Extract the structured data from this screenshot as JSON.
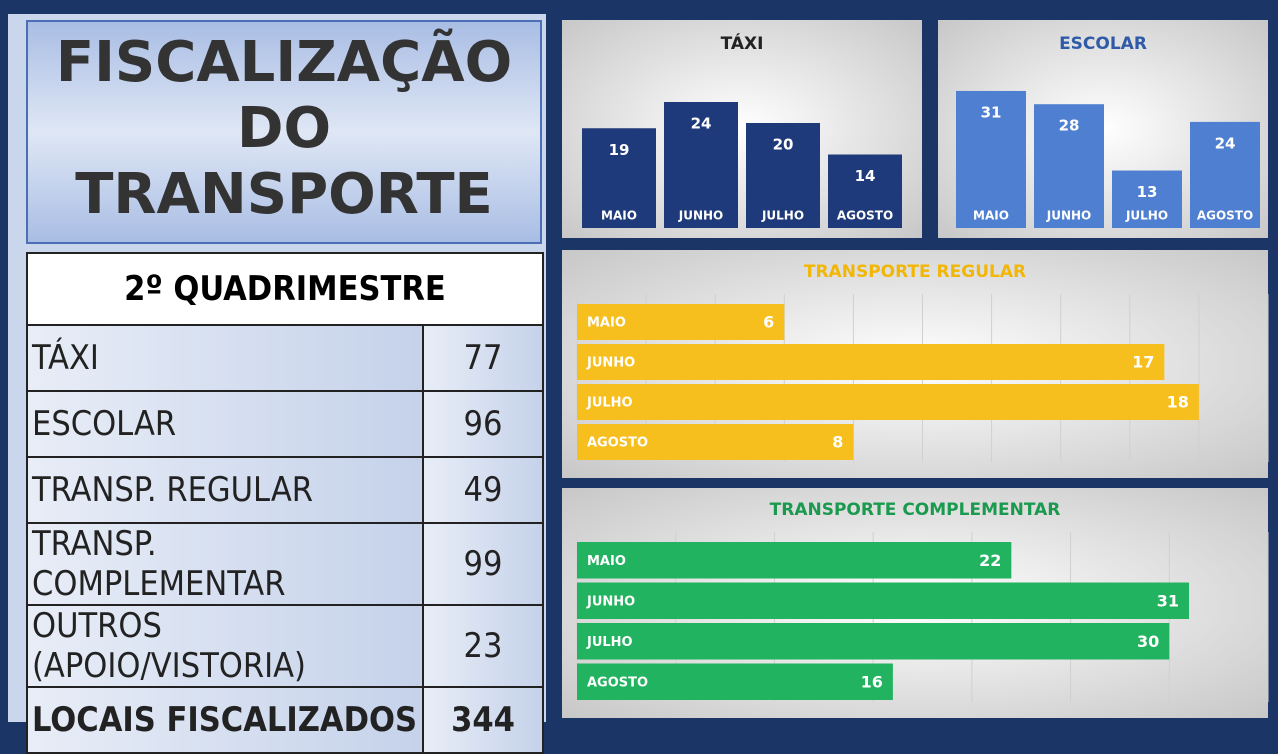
{
  "header": {
    "title_lines": [
      "FISCALIZAÇÃO",
      "DO",
      "TRANSPORTE"
    ]
  },
  "table": {
    "title": "2º QUADRIMESTRE",
    "rows": [
      [
        "TÁXI",
        "77"
      ],
      [
        "ESCOLAR",
        "96"
      ],
      [
        "TRANSP. REGULAR",
        "49"
      ],
      [
        "TRANSP. COMPLEMENTAR",
        "99"
      ],
      [
        "OUTROS (APOIO/VISTORIA)",
        "23"
      ],
      [
        "LOCAIS FISCALIZADOS",
        "344"
      ]
    ]
  },
  "chart_data": [
    {
      "type": "bar",
      "title": "TÁXI",
      "categories": [
        "MAIO",
        "JUNHO",
        "JULHO",
        "AGOSTO"
      ],
      "values": [
        19,
        24,
        20,
        14
      ],
      "color": "#1f3a7a",
      "title_color": "#222222",
      "ylim": [
        0,
        32
      ]
    },
    {
      "type": "bar",
      "title": "ESCOLAR",
      "categories": [
        "MAIO",
        "JUNHO",
        "JULHO",
        "AGOSTO"
      ],
      "values": [
        31,
        28,
        13,
        24
      ],
      "color": "#4f7fd0",
      "title_color": "#2e5aa8",
      "ylim": [
        0,
        38
      ]
    },
    {
      "type": "hbar",
      "title": "TRANSPORTE REGULAR",
      "categories": [
        "MAIO",
        "JUNHO",
        "JULHO",
        "AGOSTO"
      ],
      "values": [
        6,
        17,
        18,
        8
      ],
      "color": "#f6bf1e",
      "title_color": "#f2b705",
      "xlim": [
        0,
        20
      ],
      "xticks": [
        0,
        2,
        4,
        6,
        8,
        10,
        12,
        14,
        16,
        18,
        20
      ],
      "grid": true
    },
    {
      "type": "hbar",
      "title": "TRANSPORTE COMPLEMENTAR",
      "categories": [
        "MAIO",
        "JUNHO",
        "JULHO",
        "AGOSTO"
      ],
      "values": [
        22,
        31,
        30,
        16
      ],
      "color": "#22b360",
      "title_color": "#1a9a4e",
      "xlim": [
        0,
        35
      ],
      "xticks": [
        0,
        5,
        10,
        15,
        20,
        25,
        30,
        35
      ],
      "grid": true
    }
  ]
}
